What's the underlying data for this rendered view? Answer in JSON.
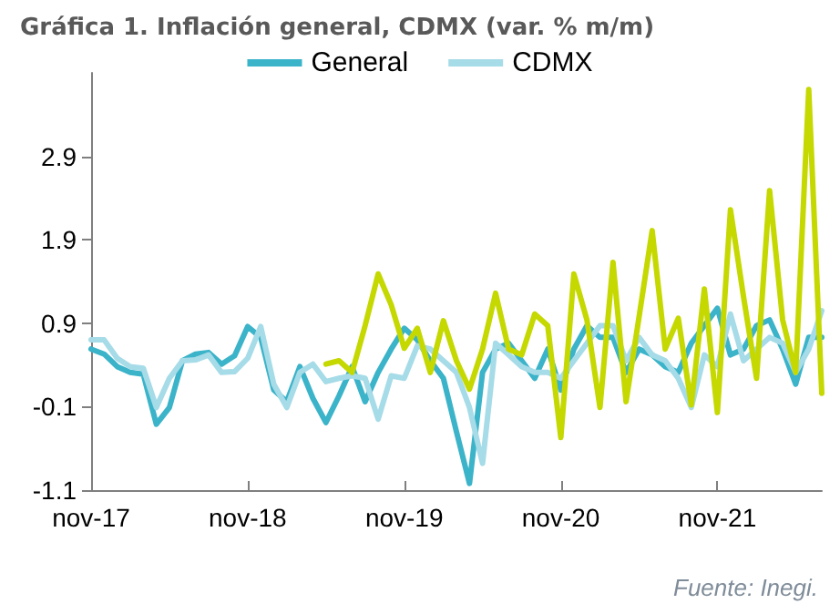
{
  "chart_data": {
    "type": "line",
    "title": "Gráfica 1. Inflación general, CDMX (var. % m/m)",
    "categories": [
      "nov-17",
      null,
      null,
      null,
      null,
      null,
      null,
      null,
      null,
      null,
      null,
      null,
      "nov-18",
      null,
      null,
      null,
      null,
      null,
      null,
      null,
      null,
      null,
      null,
      null,
      "nov-19",
      null,
      null,
      null,
      null,
      null,
      null,
      null,
      null,
      null,
      null,
      null,
      "nov-20",
      null,
      null,
      null,
      null,
      null,
      null,
      null,
      null,
      null,
      null,
      null,
      "nov-21",
      null,
      null,
      null,
      null,
      null,
      null,
      null,
      null
    ],
    "series": [
      {
        "name": "General",
        "color": "#3bb3c9",
        "values": [
          0.59,
          0.53,
          0.38,
          0.31,
          0.29,
          -0.31,
          -0.11,
          0.45,
          0.53,
          0.55,
          0.41,
          0.51,
          0.86,
          0.73,
          0.1,
          -0.04,
          0.38,
          0,
          -0.29,
          0.03,
          0.38,
          -0.04,
          0.31,
          0.59,
          0.84,
          0.7,
          0.45,
          0.24,
          -0.4,
          -1.02,
          0.31,
          0.59,
          0.66,
          0.45,
          0.24,
          0.59,
          0.1,
          0.59,
          0.87,
          0.73,
          0.73,
          0.31,
          0.59,
          0.52,
          0.38,
          0.31,
          0.66,
          0.87,
          1.08,
          0.52,
          0.59,
          0.87,
          0.94,
          0.59,
          0.17,
          0.73,
          0.73
        ]
      },
      {
        "name": "CDMX",
        "color": "#a6dbe8",
        "values": [
          0.7,
          0.7,
          0.48,
          0.38,
          0.36,
          -0.11,
          0.24,
          0.45,
          0.46,
          0.52,
          0.31,
          0.32,
          0.48,
          0.86,
          0.17,
          -0.11,
          0.31,
          0.41,
          0.2,
          0.24,
          0.27,
          0.24,
          -0.25,
          0.27,
          0.24,
          0.63,
          0.59,
          0.45,
          0.31,
          -0.11,
          -0.78,
          0.66,
          0.52,
          0.38,
          0.31,
          0.31,
          0.24,
          0.45,
          0.66,
          0.87,
          0.87,
          0.45,
          0.73,
          0.52,
          0.45,
          0.24,
          -0.11,
          0.52,
          0.38,
          1.01,
          0.45,
          0.59,
          0.73,
          0.66,
          0.31,
          0.59,
          1.05
        ]
      },
      {
        "color": "#c5d800",
        "values": [
          null,
          null,
          null,
          null,
          null,
          null,
          null,
          null,
          null,
          null,
          null,
          null,
          null,
          null,
          null,
          null,
          null,
          null,
          0.41,
          0.45,
          0.31,
          0.87,
          1.49,
          1.12,
          0.6,
          0.84,
          0.31,
          0.93,
          0.45,
          0.11,
          0.59,
          1.26,
          0.59,
          0.52,
          1.01,
          0.87,
          -0.47,
          1.49,
          0.94,
          -0.11,
          1.63,
          -0.04,
          0.98,
          2.01,
          0.59,
          0.96,
          -0.08,
          1.31,
          -0.17,
          2.26,
          1.22,
          0.24,
          2.49,
          0.94,
          0.31,
          3.7,
          0.06
        ]
      }
    ],
    "ylim": [
      -1.1,
      3.9
    ],
    "yticks": [
      -1.1,
      -0.1,
      0.9,
      1.9,
      2.9
    ],
    "legend": "top",
    "marker": "none",
    "line_style": "solid",
    "annotations": [
      "Fuente: Inegi."
    ]
  }
}
